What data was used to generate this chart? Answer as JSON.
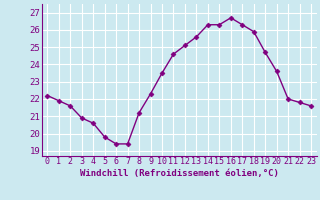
{
  "x": [
    0,
    1,
    2,
    3,
    4,
    5,
    6,
    7,
    8,
    9,
    10,
    11,
    12,
    13,
    14,
    15,
    16,
    17,
    18,
    19,
    20,
    21,
    22,
    23
  ],
  "y": [
    22.2,
    21.9,
    21.6,
    20.9,
    20.6,
    19.8,
    19.4,
    19.4,
    21.2,
    22.3,
    23.5,
    24.6,
    25.1,
    25.6,
    26.3,
    26.3,
    26.7,
    26.3,
    25.9,
    24.7,
    23.6,
    22.0,
    21.8,
    21.6
  ],
  "line_color": "#800080",
  "marker": "D",
  "marker_size": 2.5,
  "xlabel": "Windchill (Refroidissement éolien,°C)",
  "yticks": [
    19,
    20,
    21,
    22,
    23,
    24,
    25,
    26,
    27
  ],
  "xticks": [
    0,
    1,
    2,
    3,
    4,
    5,
    6,
    7,
    8,
    9,
    10,
    11,
    12,
    13,
    14,
    15,
    16,
    17,
    18,
    19,
    20,
    21,
    22,
    23
  ],
  "ylim": [
    18.7,
    27.5
  ],
  "xlim": [
    -0.5,
    23.5
  ],
  "bg_color": "#cce9f0",
  "grid_color": "#ffffff",
  "tick_color": "#800080",
  "label_color": "#800080",
  "xlabel_fontsize": 6.5,
  "ytick_fontsize": 6.5,
  "xtick_fontsize": 6.0,
  "line_width": 1.0,
  "spine_color": "#800080"
}
